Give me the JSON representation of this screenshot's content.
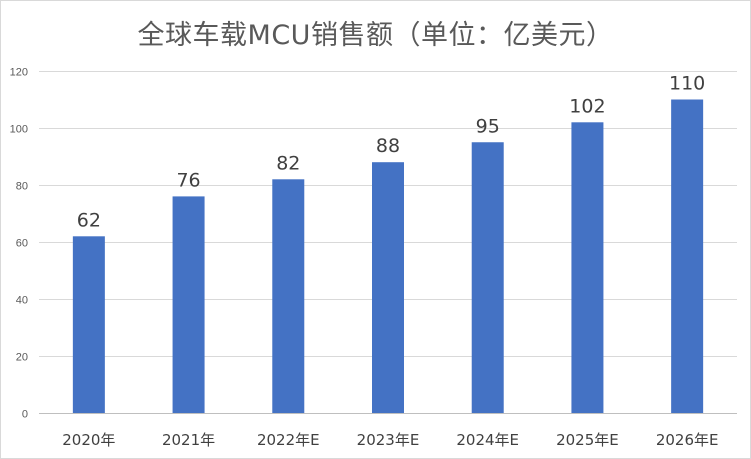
{
  "chart_data": {
    "type": "bar",
    "title": "全球车载MCU销售额（单位：亿美元）",
    "categories": [
      "2020年",
      "2021年",
      "2022年E",
      "2023年E",
      "2024年E",
      "2025年E",
      "2026年E"
    ],
    "values": [
      62,
      76,
      82,
      88,
      95,
      102,
      110
    ],
    "yticks": [
      0,
      20,
      40,
      60,
      80,
      100,
      120
    ],
    "ylim": [
      0,
      120
    ],
    "xlabel": "",
    "ylabel": "",
    "grid": true,
    "legend": "none",
    "bar_color": "#4472C4"
  }
}
